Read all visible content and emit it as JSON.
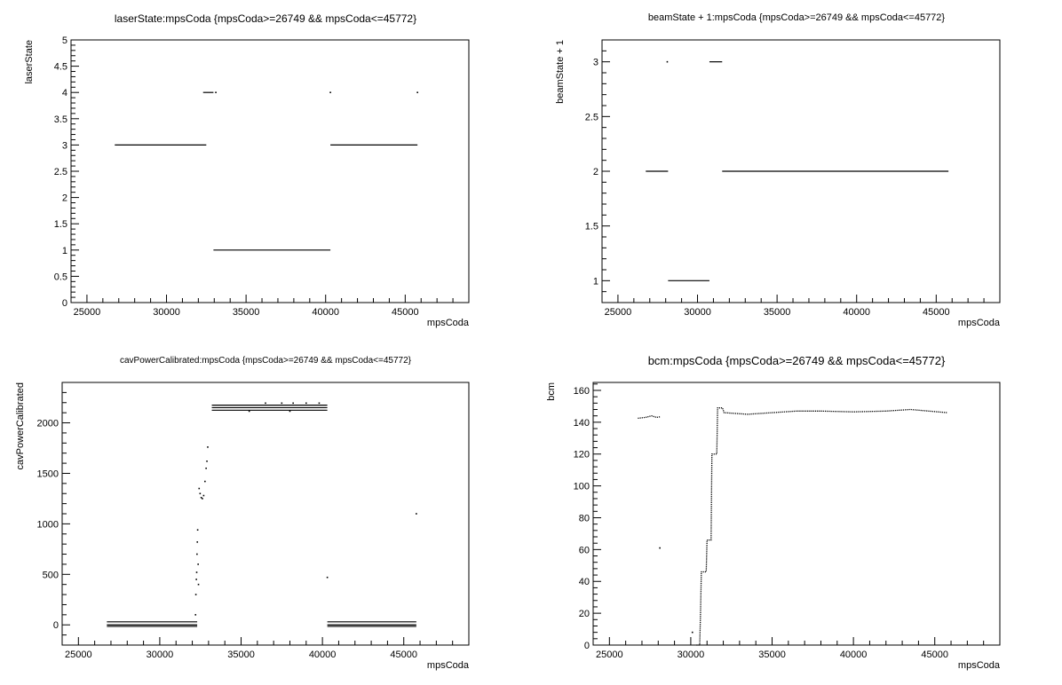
{
  "chart_data": [
    {
      "type": "scatter",
      "title": "laserState:mpsCoda {mpsCoda>=26749 && mpsCoda<=45772}",
      "xlabel": "mpsCoda",
      "ylabel": "laserState",
      "xlim": [
        24000,
        49000
      ],
      "ylim": [
        0,
        5
      ],
      "xticks": [
        25000,
        30000,
        35000,
        40000,
        45000
      ],
      "xticklabels": [
        "25000",
        "30000",
        "35000",
        "40000",
        "45000"
      ],
      "yticks": [
        0,
        0.5,
        1,
        1.5,
        2,
        2.5,
        3,
        3.5,
        4,
        4.5,
        5
      ],
      "yticklabels": [
        "0",
        "0.5",
        "1",
        "1.5",
        "2",
        "2.5",
        "3",
        "3.5",
        "4",
        "4.5",
        "5"
      ],
      "series": [
        {
          "segments": [
            [
              26749,
              32500,
              3
            ],
            [
              32300,
              32950,
              4
            ],
            [
              32950,
              40300,
              1
            ],
            [
              40300,
              45772,
              3
            ]
          ],
          "points": [
            [
              33100,
              4
            ],
            [
              40300,
              4
            ],
            [
              45772,
              4
            ]
          ]
        }
      ]
    },
    {
      "type": "scatter",
      "title": "beamState + 1:mpsCoda {mpsCoda>=26749 && mpsCoda<=45772}",
      "xlabel": "mpsCoda",
      "ylabel": "beamState + 1",
      "xlim": [
        24000,
        49000
      ],
      "ylim": [
        0.8,
        3.2
      ],
      "xticks": [
        25000,
        30000,
        35000,
        40000,
        45000
      ],
      "xticklabels": [
        "25000",
        "30000",
        "35000",
        "40000",
        "45000"
      ],
      "yticks": [
        1,
        1.5,
        2,
        2.5,
        3
      ],
      "yticklabels": [
        "1",
        "1.5",
        "2",
        "2.5",
        "3"
      ],
      "series": [
        {
          "segments": [
            [
              26749,
              28150,
              2
            ],
            [
              28150,
              30750,
              1
            ],
            [
              30750,
              31550,
              3
            ],
            [
              31550,
              45772,
              2
            ]
          ],
          "points": [
            [
              28100,
              3
            ]
          ]
        }
      ]
    },
    {
      "type": "scatter",
      "title": "cavPowerCalibrated:mpsCoda {mpsCoda>=26749 && mpsCoda<=45772}",
      "xlabel": "mpsCoda",
      "ylabel": "cavPowerCalibrated",
      "xlim": [
        24000,
        49000
      ],
      "ylim": [
        -200,
        2400
      ],
      "xticks": [
        25000,
        30000,
        35000,
        40000,
        45000
      ],
      "xticklabels": [
        "25000",
        "30000",
        "35000",
        "40000",
        "45000"
      ],
      "yticks": [
        0,
        500,
        1000,
        1500,
        2000
      ],
      "yticklabels": [
        "0",
        "500",
        "1000",
        "1500",
        "2000"
      ],
      "series": [
        {
          "segments": [
            [
              26749,
              32300,
              30
            ],
            [
              26749,
              32300,
              0
            ],
            [
              26749,
              32300,
              -15
            ],
            [
              33200,
              40300,
              2175
            ],
            [
              33200,
              40300,
              2150
            ],
            [
              33200,
              40300,
              2125
            ],
            [
              40300,
              45772,
              30
            ],
            [
              40300,
              45772,
              0
            ],
            [
              40300,
              45772,
              -15
            ]
          ],
          "points": [
            [
              32200,
              100
            ],
            [
              32220,
              300
            ],
            [
              32250,
              450
            ],
            [
              32270,
              520
            ],
            [
              32290,
              700
            ],
            [
              32310,
              820
            ],
            [
              32330,
              940
            ],
            [
              32360,
              600
            ],
            [
              32380,
              400
            ],
            [
              32420,
              1350
            ],
            [
              32480,
              1300
            ],
            [
              32550,
              1260
            ],
            [
              32620,
              1250
            ],
            [
              32700,
              1280
            ],
            [
              32780,
              1420
            ],
            [
              32850,
              1550
            ],
            [
              32900,
              1620
            ],
            [
              32950,
              1760
            ],
            [
              40300,
              470
            ],
            [
              45772,
              1100
            ],
            [
              36500,
              2195
            ],
            [
              37500,
              2195
            ],
            [
              38200,
              2195
            ],
            [
              39000,
              2195
            ],
            [
              39800,
              2195
            ],
            [
              35500,
              2115
            ],
            [
              38000,
              2115
            ]
          ]
        }
      ]
    },
    {
      "type": "scatter",
      "title": "bcm:mpsCoda {mpsCoda>=26749 && mpsCoda<=45772}",
      "xlabel": "mpsCoda",
      "ylabel": "bcm",
      "xlim": [
        24000,
        49000
      ],
      "ylim": [
        0,
        165
      ],
      "xticks": [
        25000,
        30000,
        35000,
        40000,
        45000
      ],
      "xticklabels": [
        "25000",
        "30000",
        "35000",
        "40000",
        "45000"
      ],
      "yticks": [
        0,
        20,
        40,
        60,
        80,
        100,
        120,
        140,
        160
      ],
      "yticklabels": [
        "0",
        "20",
        "40",
        "60",
        "80",
        "100",
        "120",
        "140",
        "160"
      ],
      "series": [
        {
          "polylines": [
            [
              [
                26749,
                142.5
              ],
              [
                27200,
                143
              ],
              [
                27600,
                144
              ],
              [
                27900,
                143
              ],
              [
                28150,
                143.5
              ]
            ],
            [
              [
                30350,
                0
              ],
              [
                30550,
                0
              ],
              [
                30600,
                20
              ],
              [
                30650,
                46
              ],
              [
                30950,
                46
              ],
              [
                31000,
                66
              ],
              [
                31250,
                66
              ],
              [
                31300,
                120
              ],
              [
                31600,
                120
              ],
              [
                31650,
                149
              ],
              [
                31950,
                149
              ],
              [
                32050,
                146
              ],
              [
                33500,
                145
              ],
              [
                35000,
                146
              ],
              [
                36500,
                147
              ],
              [
                38000,
                147
              ],
              [
                40000,
                146.5
              ],
              [
                42000,
                147
              ],
              [
                43500,
                148
              ],
              [
                45772,
                146
              ]
            ]
          ],
          "points": [
            [
              28100,
              61
            ],
            [
              30100,
              8
            ]
          ]
        }
      ]
    }
  ]
}
